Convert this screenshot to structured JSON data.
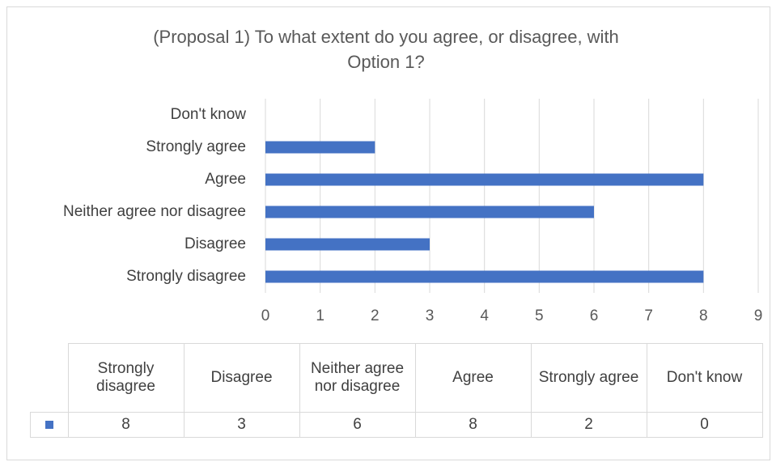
{
  "colors": {
    "bar": "#4472c4",
    "grid": "#d9d9d9",
    "border": "#d9d9d9",
    "text": "#404040"
  },
  "chart_data": {
    "type": "bar",
    "orientation": "horizontal",
    "title": "(Proposal 1) To what extent do you agree, or disagree, with\nOption 1?",
    "categories": [
      "Strongly disagree",
      "Disagree",
      "Neither agree nor disagree",
      "Agree",
      "Strongly agree",
      "Don't know"
    ],
    "values": [
      8,
      3,
      6,
      8,
      2,
      0
    ],
    "xlim": [
      0,
      9
    ],
    "x_ticks": [
      "0",
      "1",
      "2",
      "3",
      "4",
      "5",
      "6",
      "7",
      "8",
      "9"
    ],
    "grid": true,
    "legend": "none",
    "data_table": {
      "headers": [
        "Strongly disagree",
        "Disagree",
        "Neither agree nor disagree",
        "Agree",
        "Strongly agree",
        "Don't know"
      ],
      "values": [
        "8",
        "3",
        "6",
        "8",
        "2",
        "0"
      ]
    }
  }
}
